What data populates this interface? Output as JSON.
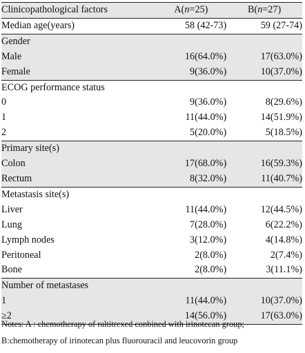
{
  "table": {
    "header": [
      "Clinicopathological factors",
      "A(n=25)",
      "B(n=27)"
    ],
    "header_parts": {
      "a_prefix": "A(",
      "a_n": "n",
      "a_suffix": "=25)",
      "b_prefix": "B(",
      "b_n": "n",
      "b_suffix": "=27)"
    },
    "rows": [
      {
        "label": "Median age(years)",
        "a": "58 (42-73)",
        "b": "59 (27-74)",
        "level": 0
      },
      {
        "label": "Gender",
        "a": "",
        "b": "",
        "level": 0
      },
      {
        "label": "Male",
        "a": "16(64.0%)",
        "b": "17(63.0%)",
        "level": 1
      },
      {
        "label": "Female",
        "a": "9(36.0%)",
        "b": "10(37.0%)",
        "level": 1
      },
      {
        "label": "ECOG performance status",
        "a": "",
        "b": "",
        "level": 0
      },
      {
        "label": "0",
        "a": "9(36.0%)",
        "b": "8(29.6%)",
        "level": 1
      },
      {
        "label": "1",
        "a": "11(44.0%)",
        "b": "14(51.9%)",
        "level": 1
      },
      {
        "label": "2",
        "a": "5(20.0%)",
        "b": "5(18.5%)",
        "level": 1
      },
      {
        "label": "Primary site(s)",
        "a": "",
        "b": "",
        "level": 0
      },
      {
        "label": "Colon",
        "a": "17(68.0%)",
        "b": "16(59.3%)",
        "level": 1
      },
      {
        "label": "Rectum",
        "a": "8(32.0%)",
        "b": "11(40.7%)",
        "level": 1
      },
      {
        "label": "Metastasis site(s)",
        "a": "",
        "b": "",
        "level": 0
      },
      {
        "label": "Liver",
        "a": "11(44.0%)",
        "b": "12(44.5%)",
        "level": 1
      },
      {
        "label": "Lung",
        "a": "7(28.0%)",
        "b": "6(22.2%)",
        "level": 1
      },
      {
        "label": "Lymph nodes",
        "a": "3(12.0%)",
        "b": "4(14.8%)",
        "level": 1
      },
      {
        "label": "Peritoneal",
        "a": "2(8.0%)",
        "b": "2(7.4%)",
        "level": 1
      },
      {
        "label": "Bone",
        "a": "2(8.0%)",
        "b": "3(11.1%)",
        "level": 1
      },
      {
        "label": "Number of metastases",
        "a": "",
        "b": "",
        "level": 0
      },
      {
        "label": "1",
        "a": "11(44.0%)",
        "b": "10(37.0%)",
        "level": 1
      },
      {
        "label": "≥2",
        "a": "14(56.0%)",
        "b": "17(63.0%)",
        "level": 1
      }
    ]
  },
  "notes": {
    "line1": "Notes: A : chemotherapy of raltitrexed conbined with irinotecan group;",
    "line2": "B:chemotherapy of irinotecan plus fluorouracil and leucovorin group"
  },
  "colors": {
    "shade": "#e6e6e6",
    "rule": "#222222"
  }
}
